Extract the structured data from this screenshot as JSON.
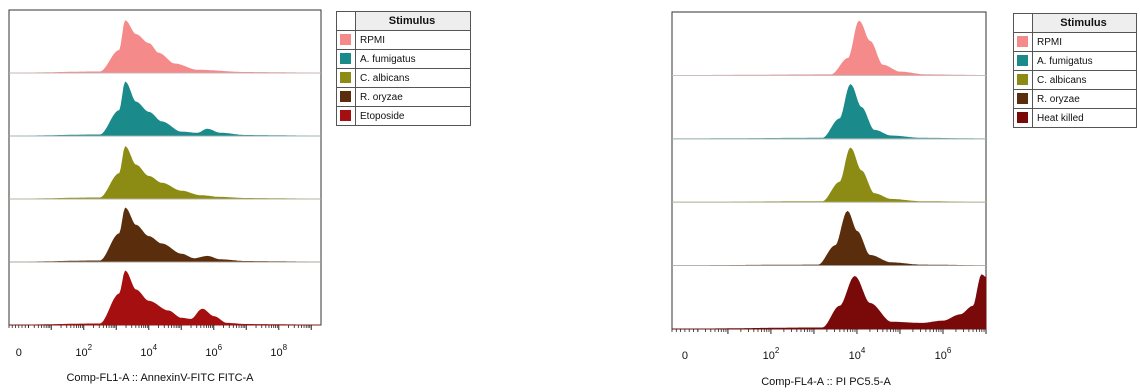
{
  "chart_data": [
    {
      "type": "area",
      "panel": "left",
      "xlabel": "Comp-FL1-A :: AnnexinV-FITC FITC-A",
      "ylabel": "",
      "x_scale": "biexponential",
      "x_ticks": [
        {
          "base": "0",
          "exp": ""
        },
        {
          "base": "10",
          "exp": "2"
        },
        {
          "base": "10",
          "exp": "4"
        },
        {
          "base": "10",
          "exp": "6"
        },
        {
          "base": "10",
          "exp": "8"
        }
      ],
      "xlim_log10": [
        -0.3,
        9.3
      ],
      "legend": {
        "title": "Stimulus",
        "placement": "right"
      },
      "series": [
        {
          "name": "RPMI",
          "color": "#f58a8a",
          "x_log10": [
            0,
            2.5,
            3.1,
            3.28,
            3.6,
            4.0,
            4.3,
            4.8,
            5.5,
            7,
            9.3
          ],
          "density": [
            0,
            0.02,
            0.4,
            0.92,
            0.68,
            0.52,
            0.35,
            0.16,
            0.05,
            0.01,
            0
          ]
        },
        {
          "name": "A. fumigatus",
          "color": "#1a8a8a",
          "x_log10": [
            0,
            2.5,
            3.1,
            3.28,
            3.6,
            4.0,
            4.4,
            5.0,
            5.5,
            5.8,
            6.2,
            7,
            9.3
          ],
          "density": [
            0,
            0.02,
            0.45,
            0.95,
            0.6,
            0.42,
            0.25,
            0.07,
            0.05,
            0.12,
            0.05,
            0.01,
            0
          ]
        },
        {
          "name": "C. albicans",
          "color": "#8c8c14",
          "x_log10": [
            0,
            2.5,
            3.1,
            3.28,
            3.6,
            4.0,
            4.4,
            5.0,
            5.6,
            6.2,
            7,
            9.3
          ],
          "density": [
            0,
            0.02,
            0.45,
            0.92,
            0.6,
            0.4,
            0.28,
            0.14,
            0.06,
            0.03,
            0.01,
            0
          ]
        },
        {
          "name": "R. oryzae",
          "color": "#5a2e0c",
          "x_log10": [
            0,
            2.5,
            3.1,
            3.28,
            3.6,
            4.0,
            4.4,
            5.0,
            5.4,
            5.8,
            6.2,
            7,
            9.3
          ],
          "density": [
            0,
            0.02,
            0.5,
            0.95,
            0.65,
            0.45,
            0.32,
            0.14,
            0.06,
            0.1,
            0.04,
            0.01,
            0
          ]
        },
        {
          "name": "Etoposide",
          "color": "#a50f0f",
          "x_log10": [
            0,
            2.5,
            3.1,
            3.28,
            3.6,
            4.0,
            4.6,
            5.0,
            5.3,
            5.65,
            6.0,
            6.4,
            7,
            9.3
          ],
          "density": [
            0,
            0.02,
            0.55,
            0.95,
            0.62,
            0.42,
            0.25,
            0.12,
            0.1,
            0.28,
            0.15,
            0.03,
            0.01,
            0
          ]
        }
      ]
    },
    {
      "type": "area",
      "panel": "right",
      "xlabel": "Comp-FL4-A :: PI PC5.5-A",
      "ylabel": "",
      "x_scale": "biexponential",
      "x_ticks": [
        {
          "base": "0",
          "exp": ""
        },
        {
          "base": "10",
          "exp": "2"
        },
        {
          "base": "10",
          "exp": "4"
        },
        {
          "base": "10",
          "exp": "6"
        }
      ],
      "xlim_log10": [
        -0.3,
        7.0
      ],
      "legend": {
        "title": "Stimulus",
        "placement": "right"
      },
      "series": [
        {
          "name": "RPMI",
          "color": "#f58a8a",
          "x_log10": [
            0,
            3.4,
            3.8,
            4.05,
            4.3,
            4.6,
            5.0,
            5.6,
            7.0
          ],
          "density": [
            0,
            0.01,
            0.3,
            0.95,
            0.6,
            0.18,
            0.06,
            0.01,
            0
          ]
        },
        {
          "name": "A. fumigatus",
          "color": "#1a8a8a",
          "x_log10": [
            0,
            3.2,
            3.6,
            3.85,
            4.1,
            4.4,
            4.8,
            5.5,
            7.0
          ],
          "density": [
            0,
            0.01,
            0.35,
            0.95,
            0.55,
            0.15,
            0.05,
            0.01,
            0
          ]
        },
        {
          "name": "C. albicans",
          "color": "#8c8c14",
          "x_log10": [
            0,
            3.2,
            3.6,
            3.85,
            4.1,
            4.4,
            4.8,
            5.5,
            7.0
          ],
          "density": [
            0,
            0.01,
            0.35,
            0.95,
            0.55,
            0.15,
            0.05,
            0.01,
            0
          ]
        },
        {
          "name": "R. oryzae",
          "color": "#5a2e0c",
          "x_log10": [
            0,
            3.1,
            3.5,
            3.78,
            4.0,
            4.3,
            4.8,
            5.5,
            7.0
          ],
          "density": [
            0,
            0.01,
            0.35,
            0.95,
            0.6,
            0.18,
            0.05,
            0.01,
            0
          ]
        },
        {
          "name": "Heat killed",
          "color": "#7a0a0a",
          "x_log10": [
            0,
            3.2,
            3.6,
            3.95,
            4.3,
            4.8,
            5.5,
            6.0,
            6.4,
            6.7,
            6.9,
            7.0
          ],
          "density": [
            0,
            0.02,
            0.4,
            0.92,
            0.45,
            0.12,
            0.1,
            0.14,
            0.25,
            0.4,
            0.95,
            0.9
          ]
        }
      ]
    }
  ]
}
